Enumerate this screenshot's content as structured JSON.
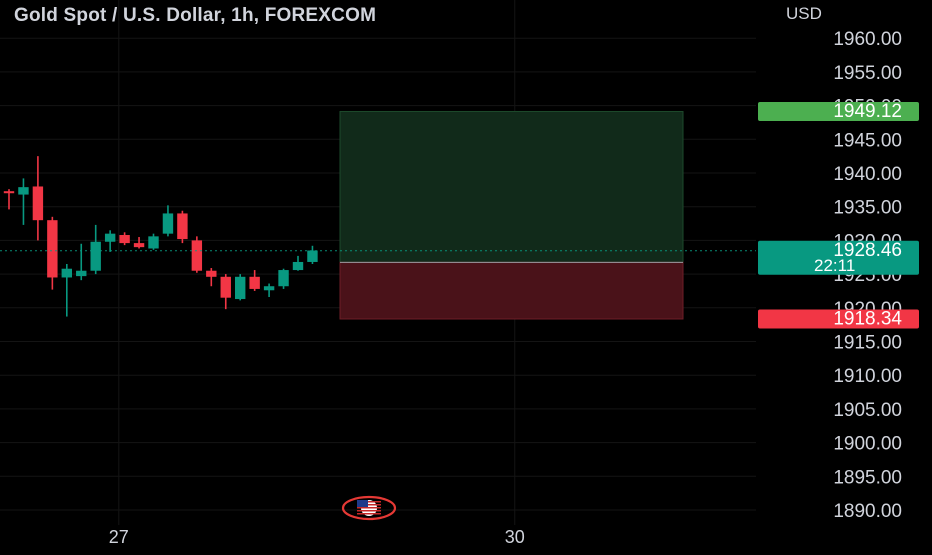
{
  "header": {
    "title": "Gold Spot / U.S. Dollar, 1h, FOREXCOM",
    "currency": "USD"
  },
  "colors": {
    "background": "#000000",
    "up": "#089981",
    "down": "#f23645",
    "text": "#d1d4dc",
    "profit_zone": "#112a1a",
    "loss_zone": "#4a1219",
    "target_badge": "#4caf50",
    "stop_badge": "#f23645",
    "last_price_badge": "#089981",
    "entry_badge": "#787b86"
  },
  "badges": {
    "target": "1949.12",
    "last_price": "1928.46",
    "countdown": "22:11",
    "entry": "1926.74",
    "stop": "1918.34"
  },
  "icons": {
    "events": "us-flag-icon"
  },
  "chart_data": {
    "type": "candlestick",
    "title": "Gold Spot / U.S. Dollar, 1h, FOREXCOM",
    "y_axis_label": "USD",
    "ylim": [
      1889,
      1962
    ],
    "yticks": [
      1960.0,
      1955.0,
      1950.0,
      1945.0,
      1940.0,
      1935.0,
      1930.0,
      1925.0,
      1920.0,
      1915.0,
      1910.0,
      1905.0,
      1900.0,
      1895.0,
      1890.0
    ],
    "ytick_labels": [
      "1960.00",
      "1955.00",
      "1950.00",
      "1945.00",
      "1940.00",
      "1935.00",
      "1930.00",
      "1925.00",
      "1920.00",
      "1915.00",
      "1910.00",
      "1905.00",
      "1900.00",
      "1895.00",
      "1890.00"
    ],
    "xticks": [
      {
        "label": "27",
        "index": 7.6
      },
      {
        "label": "30",
        "index": 35.0
      }
    ],
    "grid": true,
    "candles": [
      {
        "o": 1937.3,
        "h": 1937.6,
        "l": 1934.6,
        "c": 1937.0
      },
      {
        "o": 1936.8,
        "h": 1939.2,
        "l": 1932.3,
        "c": 1937.9
      },
      {
        "o": 1938.0,
        "h": 1942.5,
        "l": 1930.0,
        "c": 1933.0
      },
      {
        "o": 1933.0,
        "h": 1933.5,
        "l": 1922.7,
        "c": 1924.5
      },
      {
        "o": 1924.5,
        "h": 1926.5,
        "l": 1918.7,
        "c": 1925.8
      },
      {
        "o": 1924.7,
        "h": 1929.5,
        "l": 1924.1,
        "c": 1925.5
      },
      {
        "o": 1925.5,
        "h": 1932.3,
        "l": 1925.0,
        "c": 1929.8
      },
      {
        "o": 1929.8,
        "h": 1931.5,
        "l": 1928.3,
        "c": 1931.0
      },
      {
        "o": 1930.8,
        "h": 1931.2,
        "l": 1929.3,
        "c": 1929.6
      },
      {
        "o": 1929.6,
        "h": 1930.5,
        "l": 1928.8,
        "c": 1929.0
      },
      {
        "o": 1928.8,
        "h": 1931.0,
        "l": 1928.6,
        "c": 1930.6
      },
      {
        "o": 1931.0,
        "h": 1935.2,
        "l": 1930.6,
        "c": 1934.0
      },
      {
        "o": 1934.0,
        "h": 1934.4,
        "l": 1929.6,
        "c": 1930.2
      },
      {
        "o": 1930.0,
        "h": 1930.6,
        "l": 1925.2,
        "c": 1925.5
      },
      {
        "o": 1925.5,
        "h": 1925.9,
        "l": 1923.2,
        "c": 1924.6
      },
      {
        "o": 1924.6,
        "h": 1925.0,
        "l": 1919.8,
        "c": 1921.5
      },
      {
        "o": 1921.3,
        "h": 1925.0,
        "l": 1921.1,
        "c": 1924.6
      },
      {
        "o": 1924.6,
        "h": 1925.6,
        "l": 1922.5,
        "c": 1922.8
      },
      {
        "o": 1922.6,
        "h": 1923.6,
        "l": 1921.6,
        "c": 1923.2
      },
      {
        "o": 1923.2,
        "h": 1925.8,
        "l": 1922.8,
        "c": 1925.6
      },
      {
        "o": 1925.6,
        "h": 1927.7,
        "l": 1925.5,
        "c": 1926.8
      },
      {
        "o": 1926.8,
        "h": 1929.2,
        "l": 1926.5,
        "c": 1928.5
      }
    ],
    "last_price": 1928.46,
    "position": {
      "type": "long",
      "entry": 1926.74,
      "target": 1949.12,
      "stop": 1918.34
    }
  }
}
